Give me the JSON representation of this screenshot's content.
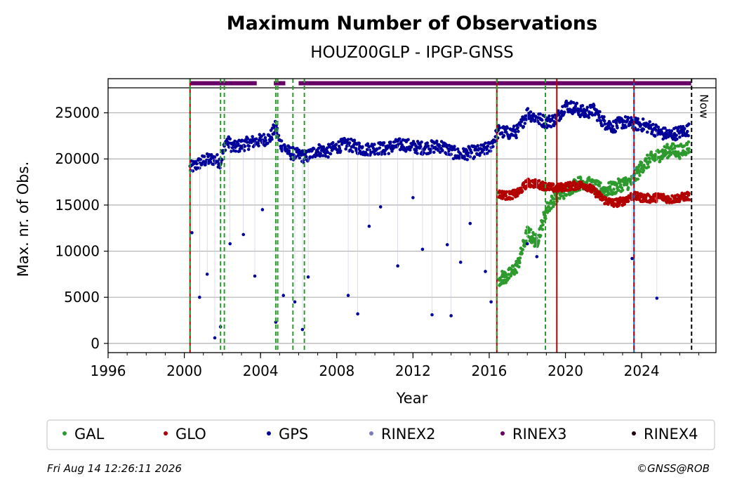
{
  "chart_data": {
    "type": "scatter",
    "title": "Maximum Number of Observations",
    "subtitle": "HOUZ00GLP - IPGP-GNSS",
    "xlabel": "Year",
    "ylabel": "Max. nr. of Obs.",
    "xlim": [
      1996,
      2027.9
    ],
    "ylim": [
      -1000,
      28700
    ],
    "x_ticks": [
      "1996",
      "2000",
      "2004",
      "2008",
      "2012",
      "2016",
      "2020",
      "2024"
    ],
    "y_ticks": [
      "0",
      "5000",
      "10000",
      "15000",
      "20000",
      "25000"
    ],
    "grid": "horizontal",
    "now_label": "Now",
    "now_year": 2026.62,
    "colors": {
      "GAL": "#2e9a2e",
      "GLO": "#b30000",
      "GPS": "#000099",
      "RINEX2": "#7b7bbd",
      "RINEX3": "#660066",
      "RINEX4": "#220011"
    },
    "series": [
      {
        "name": "GPS",
        "values_description_free": true,
        "x": [
          2000.3,
          2000.6,
          2001.0,
          2001.5,
          2001.9,
          2002.2,
          2002.6,
          2003.0,
          2003.5,
          2004.0,
          2004.5,
          2004.8,
          2005.0,
          2005.5,
          2006.0,
          2006.4,
          2007.0,
          2007.5,
          2008.0,
          2008.5,
          2009.0,
          2009.5,
          2010.0,
          2010.5,
          2011.0,
          2011.5,
          2012.0,
          2012.5,
          2013.0,
          2013.5,
          2014.0,
          2014.5,
          2015.0,
          2015.5,
          2016.0,
          2016.5,
          2017.0,
          2017.5,
          2018.0,
          2018.5,
          2019.0,
          2019.5,
          2020.0,
          2020.5,
          2021.0,
          2021.5,
          2022.0,
          2022.5,
          2023.0,
          2023.5,
          2024.0,
          2024.5,
          2025.0,
          2025.5,
          2026.0,
          2026.5
        ],
        "y": [
          19000,
          19300,
          19800,
          20000,
          19700,
          22000,
          21200,
          21500,
          21800,
          22000,
          22300,
          23500,
          21800,
          20700,
          20400,
          20200,
          21000,
          20800,
          21300,
          21600,
          21300,
          21000,
          21200,
          21100,
          21400,
          21600,
          21300,
          21200,
          21300,
          21400,
          20800,
          20400,
          20700,
          20800,
          21200,
          23000,
          22800,
          23000,
          25000,
          24400,
          24000,
          24300,
          25800,
          25500,
          25000,
          25300,
          24000,
          23500,
          24000,
          23800,
          23700,
          23400,
          22800,
          22600,
          22900,
          23200
        ]
      },
      {
        "name": "GLO",
        "x": [
          2016.5,
          2017.0,
          2017.5,
          2018.0,
          2018.5,
          2019.0,
          2019.5,
          2020.0,
          2020.5,
          2021.0,
          2021.5,
          2022.0,
          2022.5,
          2023.0,
          2023.5,
          2024.0,
          2024.5,
          2025.0,
          2025.5,
          2026.0,
          2026.5
        ],
        "y": [
          16200,
          16000,
          16300,
          17400,
          17300,
          17000,
          16800,
          17000,
          17100,
          17200,
          16500,
          15600,
          15200,
          15400,
          16000,
          15800,
          15700,
          15900,
          15600,
          15800,
          16000
        ]
      },
      {
        "name": "GAL",
        "x": [
          2016.5,
          2017.0,
          2017.5,
          2018.0,
          2018.5,
          2019.0,
          2019.5,
          2020.0,
          2020.5,
          2021.0,
          2021.5,
          2022.0,
          2022.5,
          2023.0,
          2023.5,
          2024.0,
          2024.5,
          2025.0,
          2025.5,
          2026.0,
          2026.5
        ],
        "y": [
          7000,
          7300,
          8500,
          12000,
          11000,
          14500,
          16000,
          16500,
          17200,
          17500,
          17000,
          16600,
          16800,
          17300,
          17500,
          19200,
          20000,
          20500,
          21000,
          20800,
          21300
        ]
      },
      {
        "name": "GPS outliers",
        "x": [
          2000.4,
          2000.8,
          2001.2,
          2001.6,
          2001.9,
          2002.4,
          2003.1,
          2003.7,
          2004.1,
          2004.8,
          2005.2,
          2005.8,
          2006.2,
          2006.5,
          2008.6,
          2009.1,
          2009.7,
          2010.3,
          2011.2,
          2012.0,
          2012.5,
          2013.0,
          2013.8,
          2014.0,
          2014.5,
          2015.0,
          2015.8,
          2016.1,
          2018.0,
          2018.5,
          2023.5,
          2024.8
        ],
        "y": [
          12000,
          5000,
          7500,
          600,
          1800,
          10800,
          11800,
          7300,
          14500,
          2300,
          5200,
          4500,
          1500,
          7200,
          5200,
          3200,
          12700,
          14800,
          8400,
          15800,
          10200,
          3100,
          10700,
          3000,
          8800,
          13000,
          7800,
          4500,
          10800,
          9400,
          9200,
          4900
        ]
      }
    ],
    "rinex_bar": {
      "label": "RINEX3",
      "segments": [
        [
          2000.3,
          2003.8
        ],
        [
          2004.7,
          2005.3
        ],
        [
          2006.0,
          2026.6
        ]
      ]
    },
    "vlines": [
      {
        "x": 2000.3,
        "color": "#b30000",
        "dash": false
      },
      {
        "x": 2000.3,
        "color": "#2e9a2e",
        "dash": true
      },
      {
        "x": 2001.9,
        "color": "#2e9a2e",
        "dash": true
      },
      {
        "x": 2002.1,
        "color": "#2e9a2e",
        "dash": true
      },
      {
        "x": 2004.8,
        "color": "#2e9a2e",
        "dash": true
      },
      {
        "x": 2004.9,
        "color": "#2e9a2e",
        "dash": true
      },
      {
        "x": 2005.7,
        "color": "#2e9a2e",
        "dash": true
      },
      {
        "x": 2006.3,
        "color": "#2e9a2e",
        "dash": true
      },
      {
        "x": 2016.4,
        "color": "#b30000",
        "dash": false
      },
      {
        "x": 2016.4,
        "color": "#2e9a2e",
        "dash": true
      },
      {
        "x": 2018.95,
        "color": "#2e9a2e",
        "dash": true
      },
      {
        "x": 2019.55,
        "color": "#b30000",
        "dash": false
      },
      {
        "x": 2023.6,
        "color": "#1e5fbf",
        "dash": false
      },
      {
        "x": 2023.6,
        "color": "#b30000",
        "dash": true
      },
      {
        "x": 2026.62,
        "color": "#000000",
        "dash": true
      }
    ],
    "legend": [
      "GAL",
      "GLO",
      "GPS",
      "RINEX2",
      "RINEX3",
      "RINEX4"
    ],
    "legend_position": "bottom"
  },
  "footer": {
    "timestamp": "Fri Aug 14 12:26:11 2026",
    "copyright": "©GNSS@ROB"
  }
}
